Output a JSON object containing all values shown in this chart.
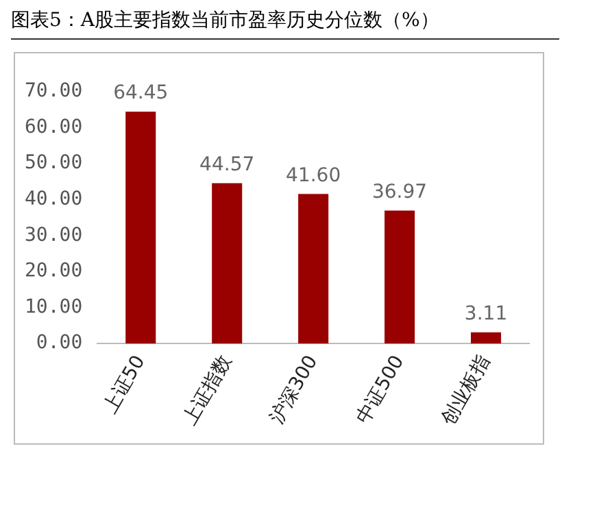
{
  "chart_data": {
    "type": "bar",
    "title": "图表5：A股主要指数当前市盈率历史分位数（%）",
    "categories": [
      "上证50",
      "上证指数",
      "沪深300",
      "中证500",
      "创业板指"
    ],
    "values": [
      64.45,
      44.57,
      41.6,
      36.97,
      3.11
    ],
    "value_labels": [
      "64.45",
      "44.57",
      "41.60",
      "36.97",
      "3.11"
    ],
    "color": "#990000",
    "ylim": [
      0,
      70
    ],
    "yticks": [
      {
        "value": 0,
        "label": "0.00"
      },
      {
        "value": 10,
        "label": "10.00"
      },
      {
        "value": 20,
        "label": "20.00"
      },
      {
        "value": 30,
        "label": "30.00"
      },
      {
        "value": 40,
        "label": "40.00"
      },
      {
        "value": 50,
        "label": "50.00"
      },
      {
        "value": 60,
        "label": "60.00"
      },
      {
        "value": 70,
        "label": "70.00"
      }
    ],
    "grid": false,
    "legend": false
  }
}
